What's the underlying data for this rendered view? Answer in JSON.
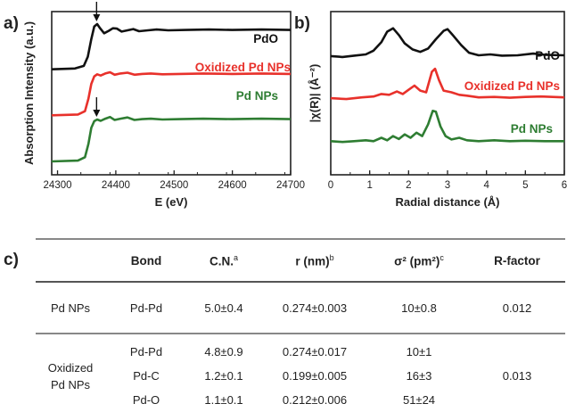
{
  "panels": {
    "a": "a)",
    "b": "b)",
    "c": "c)"
  },
  "chart_data": [
    {
      "type": "line",
      "panel": "a",
      "xlabel": "E (eV)",
      "ylabel": "Absorption Intensity (a.u.)",
      "xlim": [
        24290,
        24700
      ],
      "xticks": [
        24300,
        24400,
        24500,
        24600,
        24700
      ],
      "yticks": "none",
      "series": [
        {
          "name": "PdO",
          "color": "#111111",
          "offset": 2.2,
          "edge": 24356,
          "arrow_at": 24367,
          "points": [
            [
              24290,
              0.0
            ],
            [
              24330,
              0.02
            ],
            [
              24345,
              0.08
            ],
            [
              24352,
              0.3
            ],
            [
              24358,
              0.72
            ],
            [
              24363,
              1.02
            ],
            [
              24368,
              1.08
            ],
            [
              24373,
              0.98
            ],
            [
              24380,
              0.86
            ],
            [
              24388,
              0.92
            ],
            [
              24395,
              0.98
            ],
            [
              24402,
              0.97
            ],
            [
              24410,
              0.9
            ],
            [
              24420,
              0.93
            ],
            [
              24430,
              0.96
            ],
            [
              24440,
              0.91
            ],
            [
              24455,
              0.93
            ],
            [
              24470,
              0.95
            ],
            [
              24490,
              0.93
            ],
            [
              24520,
              0.94
            ],
            [
              24560,
              0.95
            ],
            [
              24600,
              0.94
            ],
            [
              24650,
              0.95
            ],
            [
              24700,
              0.94
            ]
          ]
        },
        {
          "name": "Oxidized Pd NPs",
          "color": "#e8312b",
          "offset": 1.1,
          "points": [
            [
              24290,
              0.0
            ],
            [
              24335,
              0.02
            ],
            [
              24347,
              0.1
            ],
            [
              24353,
              0.4
            ],
            [
              24358,
              0.75
            ],
            [
              24363,
              0.93
            ],
            [
              24368,
              0.98
            ],
            [
              24374,
              0.95
            ],
            [
              24382,
              1.0
            ],
            [
              24390,
              1.03
            ],
            [
              24398,
              0.97
            ],
            [
              24408,
              1.0
            ],
            [
              24420,
              1.02
            ],
            [
              24432,
              0.97
            ],
            [
              24445,
              0.99
            ],
            [
              24460,
              1.0
            ],
            [
              24480,
              0.98
            ],
            [
              24510,
              0.99
            ],
            [
              24550,
              1.0
            ],
            [
              24600,
              0.99
            ],
            [
              24650,
              1.0
            ],
            [
              24700,
              0.99
            ]
          ]
        },
        {
          "name": "Pd NPs",
          "color": "#2e7d32",
          "offset": 0.0,
          "arrow_at": 24367,
          "points": [
            [
              24290,
              0.0
            ],
            [
              24335,
              0.02
            ],
            [
              24347,
              0.1
            ],
            [
              24353,
              0.42
            ],
            [
              24358,
              0.8
            ],
            [
              24363,
              0.96
            ],
            [
              24368,
              1.0
            ],
            [
              24374,
              0.97
            ],
            [
              24382,
              1.02
            ],
            [
              24390,
              1.06
            ],
            [
              24398,
              0.99
            ],
            [
              24408,
              1.02
            ],
            [
              24420,
              1.05
            ],
            [
              24432,
              0.99
            ],
            [
              24445,
              1.01
            ],
            [
              24460,
              1.02
            ],
            [
              24480,
              1.0
            ],
            [
              24510,
              1.01
            ],
            [
              24550,
              1.02
            ],
            [
              24600,
              1.01
            ],
            [
              24650,
              1.02
            ],
            [
              24700,
              1.01
            ]
          ]
        }
      ],
      "annotations": [
        "arrow at PdO white line",
        "arrow at Pd NPs white line"
      ]
    },
    {
      "type": "line",
      "panel": "b",
      "xlabel": "Radial distance (Å)",
      "ylabel": "|χ(R)| (Å⁻²)",
      "xlim": [
        0,
        6
      ],
      "xticks": [
        0,
        1,
        2,
        3,
        4,
        5,
        6
      ],
      "yticks": "none",
      "series": [
        {
          "name": "PdO",
          "color": "#111111",
          "offset": 2.0,
          "points": [
            [
              0,
              0.12
            ],
            [
              0.3,
              0.1
            ],
            [
              0.6,
              0.13
            ],
            [
              0.9,
              0.16
            ],
            [
              1.1,
              0.25
            ],
            [
              1.3,
              0.45
            ],
            [
              1.45,
              0.7
            ],
            [
              1.6,
              0.78
            ],
            [
              1.75,
              0.62
            ],
            [
              1.9,
              0.42
            ],
            [
              2.1,
              0.28
            ],
            [
              2.3,
              0.22
            ],
            [
              2.5,
              0.3
            ],
            [
              2.7,
              0.52
            ],
            [
              2.9,
              0.72
            ],
            [
              3.0,
              0.76
            ],
            [
              3.15,
              0.6
            ],
            [
              3.35,
              0.38
            ],
            [
              3.55,
              0.2
            ],
            [
              3.8,
              0.14
            ],
            [
              4.1,
              0.16
            ],
            [
              4.4,
              0.13
            ],
            [
              4.8,
              0.14
            ],
            [
              5.2,
              0.18
            ],
            [
              5.5,
              0.15
            ],
            [
              6.0,
              0.14
            ]
          ]
        },
        {
          "name": "Oxidized Pd NPs",
          "color": "#e8312b",
          "offset": 1.0,
          "points": [
            [
              0,
              0.12
            ],
            [
              0.4,
              0.1
            ],
            [
              0.8,
              0.14
            ],
            [
              1.1,
              0.16
            ],
            [
              1.3,
              0.22
            ],
            [
              1.5,
              0.2
            ],
            [
              1.7,
              0.28
            ],
            [
              1.85,
              0.22
            ],
            [
              2.0,
              0.32
            ],
            [
              2.15,
              0.42
            ],
            [
              2.3,
              0.3
            ],
            [
              2.45,
              0.26
            ],
            [
              2.6,
              0.75
            ],
            [
              2.68,
              0.82
            ],
            [
              2.78,
              0.55
            ],
            [
              2.9,
              0.3
            ],
            [
              3.1,
              0.26
            ],
            [
              3.3,
              0.2
            ],
            [
              3.5,
              0.18
            ],
            [
              3.8,
              0.14
            ],
            [
              4.2,
              0.15
            ],
            [
              4.6,
              0.13
            ],
            [
              5.0,
              0.15
            ],
            [
              5.4,
              0.16
            ],
            [
              6.0,
              0.14
            ]
          ]
        },
        {
          "name": "Pd NPs",
          "color": "#2e7d32",
          "offset": 0.0,
          "points": [
            [
              0,
              0.1
            ],
            [
              0.3,
              0.08
            ],
            [
              0.6,
              0.1
            ],
            [
              0.9,
              0.12
            ],
            [
              1.1,
              0.1
            ],
            [
              1.3,
              0.18
            ],
            [
              1.45,
              0.12
            ],
            [
              1.6,
              0.22
            ],
            [
              1.75,
              0.15
            ],
            [
              1.9,
              0.26
            ],
            [
              2.05,
              0.18
            ],
            [
              2.2,
              0.3
            ],
            [
              2.35,
              0.22
            ],
            [
              2.5,
              0.5
            ],
            [
              2.62,
              0.82
            ],
            [
              2.7,
              0.8
            ],
            [
              2.82,
              0.45
            ],
            [
              2.95,
              0.22
            ],
            [
              3.1,
              0.14
            ],
            [
              3.3,
              0.18
            ],
            [
              3.5,
              0.12
            ],
            [
              3.8,
              0.1
            ],
            [
              4.2,
              0.12
            ],
            [
              4.6,
              0.1
            ],
            [
              5.0,
              0.11
            ],
            [
              5.5,
              0.1
            ],
            [
              6.0,
              0.1
            ]
          ]
        }
      ]
    },
    {
      "type": "table",
      "panel": "c",
      "columns": [
        {
          "label": "",
          "sup": ""
        },
        {
          "label": "Bond",
          "sup": ""
        },
        {
          "label": "C.N.",
          "sup": "a"
        },
        {
          "label": "r (nm)",
          "sup": "b"
        },
        {
          "label": "σ² (pm²)",
          "sup": "c"
        },
        {
          "label": "R-factor",
          "sup": ""
        }
      ],
      "groups": [
        {
          "name_lines": [
            "Pd NPs"
          ],
          "r_factor": "0.012",
          "rows": [
            {
              "bond": "Pd-Pd",
              "cn": "5.0±0.4",
              "r": "0.274±0.003",
              "sigma": "10±0.8"
            }
          ]
        },
        {
          "name_lines": [
            "Oxidized",
            "Pd NPs"
          ],
          "r_factor": "0.013",
          "rows": [
            {
              "bond": "Pd-Pd",
              "cn": "4.8±0.9",
              "r": "0.274±0.017",
              "sigma": "10±1"
            },
            {
              "bond": "Pd-C",
              "cn": "1.2±0.1",
              "r": "0.199±0.005",
              "sigma": "16±3"
            },
            {
              "bond": "Pd-O",
              "cn": "1.1±0.1",
              "r": "0.212±0.006",
              "sigma": "51±24"
            }
          ]
        }
      ]
    }
  ]
}
